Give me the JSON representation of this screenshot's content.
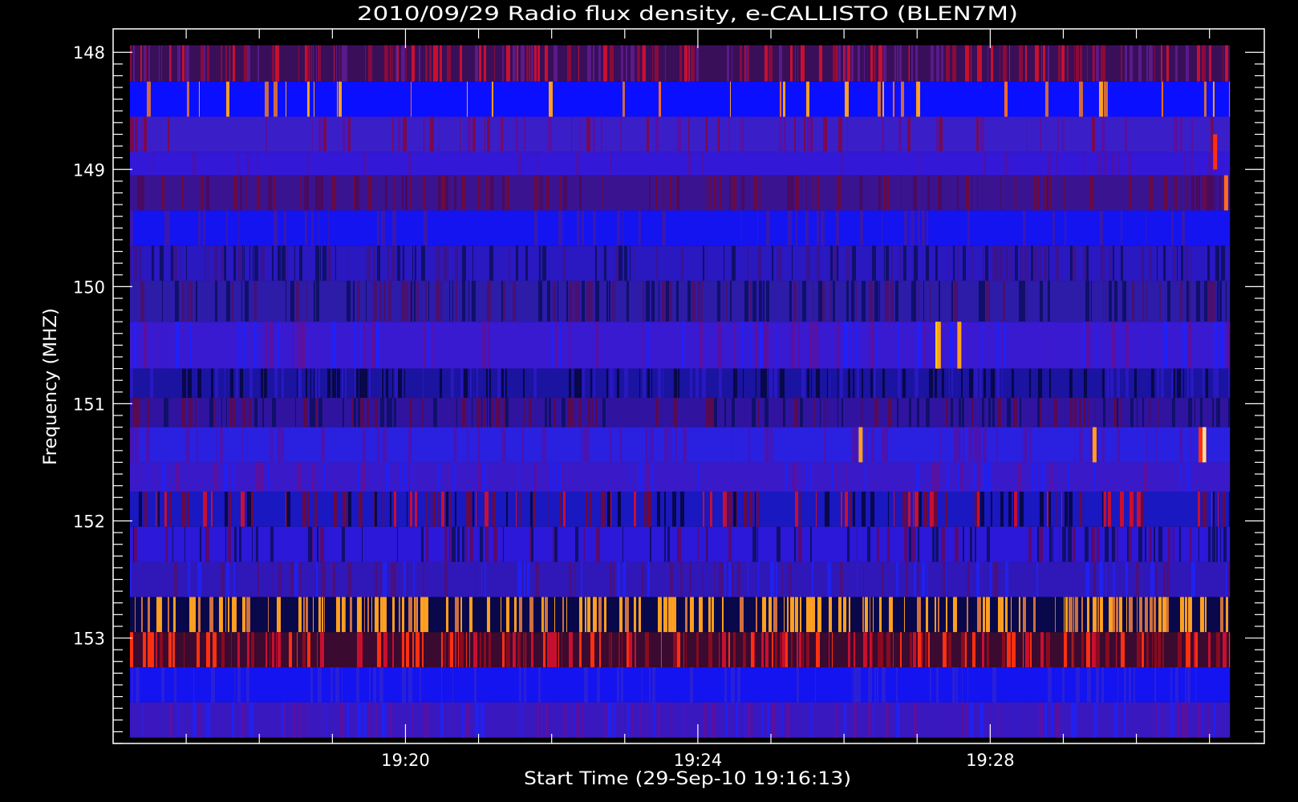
{
  "chart_data": {
    "type": "heatmap",
    "title": "2010/09/29  Radio flux density, e-CALLISTO (BLEN7M)",
    "xlabel": "Start Time (29-Sep-10 19:16:13)",
    "ylabel": "Frequency (MHZ)",
    "x_range_minutes_after_19:16": [
      0.0,
      15.75
    ],
    "data_x_range_minutes_after_19:16": [
      0.23,
      15.28
    ],
    "ylim": [
      153.9,
      147.8
    ],
    "y_inverted": true,
    "x_ticks": [
      {
        "label": "19:20",
        "minutes": 4
      },
      {
        "label": "19:24",
        "minutes": 8
      },
      {
        "label": "19:28",
        "minutes": 12
      }
    ],
    "x_minor_tick_step_minutes": 1,
    "y_ticks": [
      {
        "label": "148",
        "mhz": 148
      },
      {
        "label": "149",
        "mhz": 149
      },
      {
        "label": "150",
        "mhz": 150
      },
      {
        "label": "151",
        "mhz": 151
      },
      {
        "label": "152",
        "mhz": 152
      },
      {
        "label": "153",
        "mhz": 153
      }
    ],
    "y_minor_tick_step_mhz": 0.1,
    "channel_rows": [
      {
        "mhz_top": 147.94,
        "mhz_bottom": 148.25,
        "base": "#3a0f5a",
        "hot": [
          "#8a0a3a",
          "#c8102e",
          "#5a1a8a"
        ],
        "hot_frac": 0.55
      },
      {
        "mhz_top": 148.25,
        "mhz_bottom": 148.55,
        "base": "#0a10ff",
        "hot": [
          "#ffa020",
          "#ff6a20",
          "#d06a40"
        ],
        "hot_frac": 0.12
      },
      {
        "mhz_top": 148.55,
        "mhz_bottom": 148.85,
        "base": "#3a1fc8",
        "hot": [
          "#5a10a0",
          "#7a0a50"
        ],
        "hot_frac": 0.2
      },
      {
        "mhz_top": 148.85,
        "mhz_bottom": 149.05,
        "base": "#3418d8",
        "hot": [
          "#4a12b0"
        ],
        "hot_frac": 0.15
      },
      {
        "mhz_top": 149.05,
        "mhz_bottom": 149.35,
        "base": "#3a1490",
        "hot": [
          "#6a0a40",
          "#4a0a60"
        ],
        "hot_frac": 0.35
      },
      {
        "mhz_top": 149.35,
        "mhz_bottom": 149.65,
        "base": "#1414f0",
        "hot": [
          "#3a18b0"
        ],
        "hot_frac": 0.15
      },
      {
        "mhz_top": 149.65,
        "mhz_bottom": 149.95,
        "base": "#2a18c0",
        "hot": [
          "#10106a",
          "#3a1490"
        ],
        "hot_frac": 0.45
      },
      {
        "mhz_top": 149.95,
        "mhz_bottom": 150.3,
        "base": "#2c1ca8",
        "hot": [
          "#10106a",
          "#4a1070"
        ],
        "hot_frac": 0.5
      },
      {
        "mhz_top": 150.3,
        "mhz_bottom": 150.7,
        "base": "#3a1ad0",
        "hot": [
          "#2020f8",
          "#5a10a0"
        ],
        "hot_frac": 0.3
      },
      {
        "mhz_top": 150.7,
        "mhz_bottom": 150.95,
        "base": "#1a14a0",
        "hot": [
          "#08084a",
          "#2a18c0"
        ],
        "hot_frac": 0.5
      },
      {
        "mhz_top": 150.95,
        "mhz_bottom": 151.2,
        "base": "#3014a0",
        "hot": [
          "#5a0a50",
          "#10106a"
        ],
        "hot_frac": 0.45
      },
      {
        "mhz_top": 151.2,
        "mhz_bottom": 151.5,
        "base": "#2a20e0",
        "hot": [
          "#4a14b0"
        ],
        "hot_frac": 0.2
      },
      {
        "mhz_top": 151.5,
        "mhz_bottom": 151.75,
        "base": "#3a1ac8",
        "hot": [
          "#2020f0",
          "#5a10a0"
        ],
        "hot_frac": 0.25
      },
      {
        "mhz_top": 151.75,
        "mhz_bottom": 152.05,
        "base": "#1a18c0",
        "hot": [
          "#c8102e",
          "#08084a",
          "#6a0a40"
        ],
        "hot_frac": 0.45
      },
      {
        "mhz_top": 152.05,
        "mhz_bottom": 152.35,
        "base": "#2c18d8",
        "hot": [
          "#5a0a70",
          "#10106a"
        ],
        "hot_frac": 0.35
      },
      {
        "mhz_top": 152.35,
        "mhz_bottom": 152.65,
        "base": "#3018b8",
        "hot": [
          "#4a1080",
          "#2020f0"
        ],
        "hot_frac": 0.3
      },
      {
        "mhz_top": 152.65,
        "mhz_bottom": 152.95,
        "base": "#08084a",
        "hot": [
          "#ffa020",
          "#ffa020",
          "#d07040"
        ],
        "hot_frac": 0.55
      },
      {
        "mhz_top": 152.95,
        "mhz_bottom": 153.25,
        "base": "#3a0a30",
        "hot": [
          "#c8102e",
          "#ff3010",
          "#8a0a20"
        ],
        "hot_frac": 0.55
      },
      {
        "mhz_top": 153.25,
        "mhz_bottom": 153.55,
        "base": "#1414f0",
        "hot": [
          "#2a20d8"
        ],
        "hot_frac": 0.25
      },
      {
        "mhz_top": 153.55,
        "mhz_bottom": 153.85,
        "base": "#3a18c0",
        "hot": [
          "#5a10a0",
          "#2020f0"
        ],
        "hot_frac": 0.35
      }
    ],
    "bursts": [
      {
        "minutes": 11.25,
        "mhz_top": 150.3,
        "mhz_bottom": 150.7,
        "color": "#ffd000"
      },
      {
        "minutes": 11.27,
        "mhz_top": 150.3,
        "mhz_bottom": 150.7,
        "color": "#ffa020"
      },
      {
        "minutes": 11.55,
        "mhz_top": 150.3,
        "mhz_bottom": 150.7,
        "color": "#ffa020"
      },
      {
        "minutes": 10.2,
        "mhz_top": 151.2,
        "mhz_bottom": 151.5,
        "color": "#ffa020"
      },
      {
        "minutes": 13.4,
        "mhz_top": 151.2,
        "mhz_bottom": 151.5,
        "color": "#ffa020"
      },
      {
        "minutes": 14.9,
        "mhz_top": 151.2,
        "mhz_bottom": 151.5,
        "color": "#ffe0a0"
      },
      {
        "minutes": 14.85,
        "mhz_top": 151.2,
        "mhz_bottom": 151.5,
        "color": "#ff3010"
      },
      {
        "minutes": 15.05,
        "mhz_top": 148.7,
        "mhz_bottom": 149.0,
        "color": "#ff3010"
      },
      {
        "minutes": 15.2,
        "mhz_top": 149.05,
        "mhz_bottom": 149.35,
        "color": "#ff6a20"
      }
    ]
  }
}
